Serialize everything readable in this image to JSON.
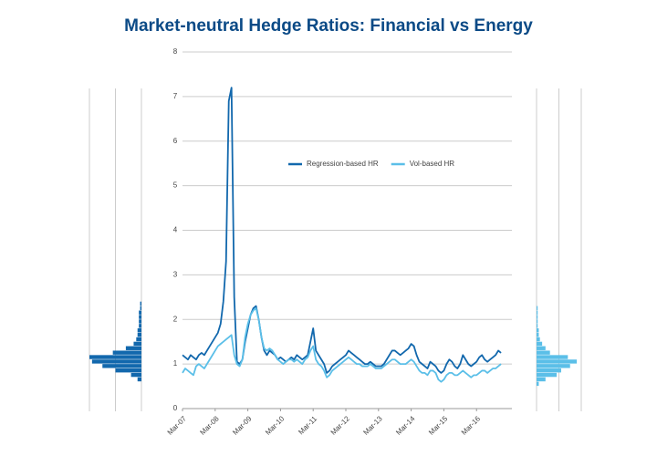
{
  "chart_data": [
    {
      "type": "line",
      "title": "Market-neutral Hedge Ratios: Financial vs Energy",
      "x": [
        "2007-03",
        "2007-04",
        "2007-05",
        "2007-06",
        "2007-07",
        "2007-08",
        "2007-09",
        "2007-10",
        "2007-11",
        "2007-12",
        "2008-01",
        "2008-02",
        "2008-03",
        "2008-04",
        "2008-05",
        "2008-06",
        "2008-07",
        "2008-08",
        "2008-09",
        "2008-10",
        "2008-11",
        "2008-12",
        "2009-01",
        "2009-02",
        "2009-03",
        "2009-04",
        "2009-05",
        "2009-06",
        "2009-07",
        "2009-08",
        "2009-09",
        "2009-10",
        "2009-11",
        "2009-12",
        "2010-01",
        "2010-02",
        "2010-03",
        "2010-04",
        "2010-05",
        "2010-06",
        "2010-07",
        "2010-08",
        "2010-09",
        "2010-10",
        "2010-11",
        "2010-12",
        "2011-01",
        "2011-02",
        "2011-03",
        "2011-04",
        "2011-05",
        "2011-06",
        "2011-07",
        "2011-08",
        "2011-09",
        "2011-10",
        "2011-11",
        "2011-12",
        "2012-01",
        "2012-02",
        "2012-03",
        "2012-04",
        "2012-05",
        "2012-06",
        "2012-07",
        "2012-08",
        "2012-09",
        "2012-10",
        "2012-11",
        "2012-12",
        "2013-01",
        "2013-02",
        "2013-03",
        "2013-04",
        "2013-05",
        "2013-06",
        "2013-07",
        "2013-08",
        "2013-09",
        "2013-10",
        "2013-11",
        "2013-12",
        "2014-01",
        "2014-02",
        "2014-03",
        "2014-04",
        "2014-05",
        "2014-06",
        "2014-07",
        "2014-08",
        "2014-09",
        "2014-10",
        "2014-11",
        "2014-12",
        "2015-01",
        "2015-02",
        "2015-03",
        "2015-04",
        "2015-05",
        "2015-06",
        "2015-07",
        "2015-08",
        "2015-09",
        "2015-10",
        "2015-11",
        "2015-12",
        "2016-01",
        "2016-02",
        "2016-03",
        "2016-04",
        "2016-05",
        "2016-06",
        "2016-07",
        "2016-08",
        "2016-09",
        "2016-10",
        "2016-11",
        "2016-12"
      ],
      "series": [
        {
          "name": "Regression-based HR",
          "color": "#1268ad",
          "values": [
            1.2,
            1.15,
            1.1,
            1.2,
            1.15,
            1.1,
            1.2,
            1.25,
            1.2,
            1.3,
            1.4,
            1.5,
            1.6,
            1.7,
            1.9,
            2.4,
            3.3,
            6.9,
            7.2,
            2.5,
            1.05,
            1.0,
            1.1,
            1.5,
            1.8,
            2.1,
            2.25,
            2.3,
            2.0,
            1.6,
            1.3,
            1.2,
            1.3,
            1.25,
            1.2,
            1.1,
            1.15,
            1.1,
            1.05,
            1.1,
            1.15,
            1.1,
            1.2,
            1.15,
            1.1,
            1.15,
            1.2,
            1.5,
            1.8,
            1.3,
            1.2,
            1.1,
            1.0,
            0.8,
            0.85,
            0.95,
            1.0,
            1.05,
            1.1,
            1.15,
            1.2,
            1.3,
            1.25,
            1.2,
            1.15,
            1.1,
            1.05,
            1.0,
            1.0,
            1.05,
            1.0,
            0.95,
            0.95,
            0.95,
            1.0,
            1.1,
            1.2,
            1.3,
            1.3,
            1.25,
            1.2,
            1.25,
            1.3,
            1.35,
            1.45,
            1.4,
            1.2,
            1.05,
            1.0,
            0.95,
            0.9,
            1.05,
            1.0,
            0.95,
            0.85,
            0.8,
            0.85,
            1.0,
            1.1,
            1.05,
            0.95,
            0.9,
            1.0,
            1.2,
            1.1,
            1.0,
            0.95,
            1.0,
            1.05,
            1.15,
            1.2,
            1.1,
            1.05,
            1.1,
            1.15,
            1.2,
            1.3,
            1.25
          ]
        },
        {
          "name": "Vol-based HR",
          "color": "#5bbfe8",
          "values": [
            0.8,
            0.9,
            0.85,
            0.8,
            0.75,
            0.95,
            1.0,
            0.95,
            0.9,
            1.0,
            1.1,
            1.2,
            1.3,
            1.4,
            1.45,
            1.5,
            1.55,
            1.6,
            1.65,
            1.2,
            1.0,
            0.95,
            1.1,
            1.6,
            1.9,
            2.1,
            2.2,
            2.25,
            2.0,
            1.6,
            1.35,
            1.3,
            1.35,
            1.3,
            1.2,
            1.1,
            1.05,
            1.0,
            1.05,
            1.1,
            1.1,
            1.05,
            1.1,
            1.05,
            1.0,
            1.1,
            1.15,
            1.3,
            1.4,
            1.1,
            1.0,
            0.95,
            0.85,
            0.7,
            0.75,
            0.85,
            0.9,
            0.95,
            1.0,
            1.05,
            1.1,
            1.15,
            1.1,
            1.05,
            1.0,
            1.0,
            0.95,
            0.95,
            0.95,
            1.0,
            0.95,
            0.9,
            0.9,
            0.9,
            0.95,
            1.0,
            1.05,
            1.1,
            1.1,
            1.05,
            1.0,
            1.0,
            1.0,
            1.05,
            1.1,
            1.05,
            0.95,
            0.85,
            0.8,
            0.8,
            0.75,
            0.85,
            0.85,
            0.8,
            0.65,
            0.6,
            0.65,
            0.75,
            0.8,
            0.8,
            0.75,
            0.75,
            0.8,
            0.85,
            0.8,
            0.75,
            0.7,
            0.75,
            0.75,
            0.8,
            0.85,
            0.85,
            0.8,
            0.85,
            0.9,
            0.9,
            0.95,
            1.0
          ]
        }
      ],
      "xlim": [
        "2007-03",
        "2017-04"
      ],
      "xticks": [
        {
          "value": "2007-03",
          "label": "Mar-07"
        },
        {
          "value": "2008-03",
          "label": "Mar-08"
        },
        {
          "value": "2009-03",
          "label": "Mar-09"
        },
        {
          "value": "2010-03",
          "label": "Mar-10"
        },
        {
          "value": "2011-03",
          "label": "Mar-11"
        },
        {
          "value": "2012-03",
          "label": "Mar-12"
        },
        {
          "value": "2013-03",
          "label": "Mar-13"
        },
        {
          "value": "2014-03",
          "label": "Mar-14"
        },
        {
          "value": "2015-03",
          "label": "Mar-15"
        },
        {
          "value": "2016-03",
          "label": "Mar-16"
        }
      ],
      "ylim": [
        0,
        8
      ],
      "yticks": [
        0,
        1,
        2,
        3,
        4,
        5,
        6,
        7,
        8
      ],
      "grid": true,
      "legend": "center"
    },
    {
      "type": "histogram",
      "side": "left",
      "color": "#1268ad",
      "bins": [
        0.6,
        0.7,
        0.8,
        0.9,
        1.0,
        1.1,
        1.2,
        1.3,
        1.4,
        1.5,
        1.6,
        1.7,
        1.8,
        1.9,
        2.0,
        2.1,
        2.2,
        2.3,
        2.4
      ],
      "counts": [
        3,
        8,
        20,
        30,
        38,
        40,
        22,
        12,
        6,
        4,
        3,
        3,
        2,
        2,
        2,
        2,
        1,
        1
      ],
      "xlim": [
        0,
        40
      ],
      "xticks": [
        0,
        20,
        40
      ]
    },
    {
      "type": "histogram",
      "side": "right",
      "color": "#5bbfe8",
      "bins": [
        0.5,
        0.6,
        0.7,
        0.8,
        0.9,
        1.0,
        1.1,
        1.2,
        1.3,
        1.4,
        1.5,
        1.6,
        1.7,
        1.8,
        1.9,
        2.0,
        2.1,
        2.2,
        2.3
      ],
      "counts": [
        2,
        8,
        18,
        22,
        30,
        36,
        28,
        12,
        8,
        5,
        3,
        2,
        2,
        1,
        1,
        1,
        1,
        1
      ],
      "xlim": [
        0,
        40
      ],
      "xticks": [
        0,
        20,
        40
      ]
    }
  ]
}
